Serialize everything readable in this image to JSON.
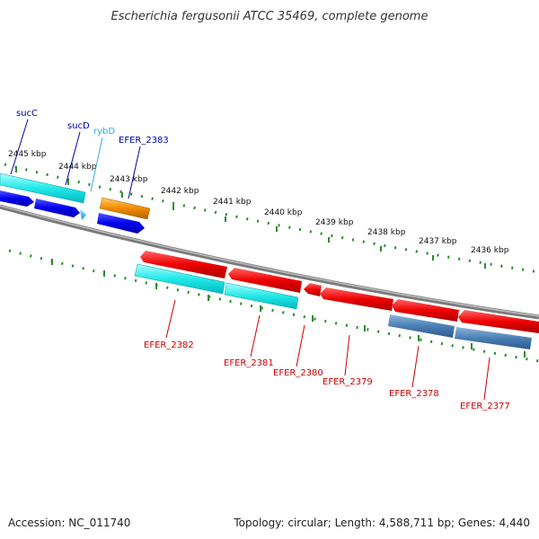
{
  "title": "Escherichia fergusonii ATCC 35469, complete genome",
  "footer": {
    "accession": "Accession: NC_011740",
    "summary": "Topology: circular; Length: 4,588,711 bp; Genes: 4,440"
  },
  "colors": {
    "backbone": "#7a7a7a",
    "tick": "#2e8b2e",
    "forward_cds": "#0000dd",
    "forward_rna": "#00a0e0",
    "forward_pseudo": "#ee8800",
    "reverse_cds": "#dd0000",
    "cyan_track": "#22e0e0",
    "steel_track": "#4a7fb5"
  },
  "ticks": [
    "2445 kbp",
    "2444 kbp",
    "2443 kbp",
    "2442 kbp",
    "2441 kbp",
    "2440 kbp",
    "2439 kbp",
    "2438 kbp",
    "2437 kbp",
    "2436 kbp"
  ],
  "top_labels": [
    {
      "text": "sucC",
      "color": "#0000aa"
    },
    {
      "text": "sucD",
      "color": "#0000aa"
    },
    {
      "text": "rybD",
      "color": "#33aadd"
    },
    {
      "text": "EFER_2383",
      "color": "#0000aa"
    }
  ],
  "bottom_labels": [
    {
      "text": "EFER_2382",
      "color": "#cc0000"
    },
    {
      "text": "EFER_2381",
      "color": "#cc0000"
    },
    {
      "text": "EFER_2380",
      "color": "#cc0000"
    },
    {
      "text": "EFER_2379",
      "color": "#cc0000"
    },
    {
      "text": "EFER_2378",
      "color": "#cc0000"
    },
    {
      "text": "EFER_2377",
      "color": "#cc0000"
    }
  ]
}
